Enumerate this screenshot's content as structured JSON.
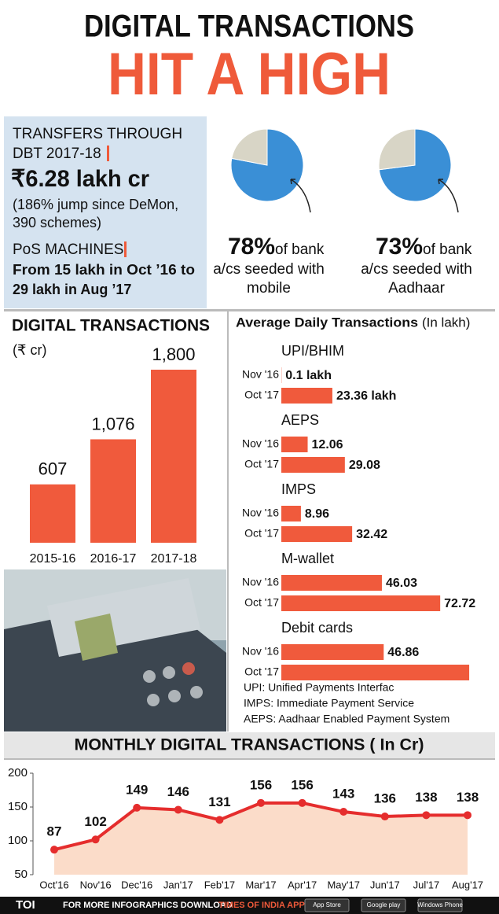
{
  "header": {
    "line1": "DIGITAL TRANSACTIONS",
    "line2": "HIT A HIGH"
  },
  "dbt": {
    "heading": [
      "TRANSFERS THROUGH",
      "DBT 2017-18"
    ],
    "amount": "₹6.28 lakh cr",
    "note": [
      "(186% jump since DeMon,",
      "390 schemes)"
    ],
    "pos_heading": "PoS MACHINES",
    "pos_text": [
      "From 15 lakh in Oct ’16 to",
      "29 lakh in Aug ’17"
    ]
  },
  "chart_data": [
    {
      "type": "pie",
      "values": [
        78,
        22
      ],
      "value_labels": [
        "78%",
        null
      ],
      "colors": [
        "#3a8fd6",
        "#d8d5c6"
      ],
      "caption": [
        "of bank",
        "a/cs seeded with",
        "mobile"
      ]
    },
    {
      "type": "pie",
      "values": [
        73,
        27
      ],
      "value_labels": [
        "73%",
        null
      ],
      "colors": [
        "#3a8fd6",
        "#d8d5c6"
      ],
      "caption": [
        "of bank",
        "a/cs seeded with",
        "Aadhaar"
      ]
    },
    {
      "type": "bar",
      "title": "DIGITAL TRANSACTIONS",
      "subtitle": "(₹ cr)",
      "categories": [
        "2015-16",
        "2016-17",
        "2017-18"
      ],
      "values": [
        607,
        1076,
        1800
      ],
      "value_labels": [
        "607",
        "1,076",
        "1,800"
      ],
      "color": "#f05a3c"
    },
    {
      "type": "hbar",
      "title": "Average Daily Transactions",
      "subtitle": "(In lakh)",
      "categories": [
        "UPI/BHIM",
        "AEPS",
        "IMPS",
        "M-wallet",
        "Debit cards"
      ],
      "series": [
        {
          "name": "Nov '16",
          "color": "#f05a3c",
          "values": [
            0.1,
            12.06,
            8.96,
            46.03,
            46.86
          ],
          "value_labels": [
            "0.1 lakh",
            "12.06",
            "8.96",
            "46.03",
            "46.86"
          ]
        },
        {
          "name": "Oct '17",
          "color": "#f05a3c",
          "values": [
            23.36,
            29.08,
            32.42,
            72.72,
            86
          ],
          "value_labels": [
            "23.36 lakh",
            "29.08",
            "32.42",
            "72.72",
            null
          ]
        }
      ],
      "notes": [
        "UPI: Unified Payments Interfac",
        "IMPS: Immediate Payment Service",
        "AEPS: Aadhaar Enabled Payment System"
      ]
    },
    {
      "type": "line",
      "title": "MONTHLY DIGITAL TRANSACTIONS ( In Cr)",
      "categories": [
        "Oct'16",
        "Nov'16",
        "Dec'16",
        "Jan'17",
        "Feb'17",
        "Mar'17",
        "Apr'17",
        "May'17",
        "Jun'17",
        "Jul'17",
        "Aug'17"
      ],
      "values": [
        87,
        102,
        149,
        146,
        131,
        156,
        156,
        143,
        136,
        138,
        138
      ],
      "ylim": [
        50,
        200
      ],
      "yticks": [
        50,
        100,
        150,
        200
      ],
      "color": "#e52d2d",
      "area_color": "#fbdcc9"
    }
  ],
  "footer": {
    "logo": "TOI",
    "text": "FOR MORE INFOGRAPHICS DOWNLOAD",
    "app": "TIMES OF INDIA APP",
    "badges": [
      "App Store",
      "Google play",
      "Windows Phone"
    ]
  }
}
